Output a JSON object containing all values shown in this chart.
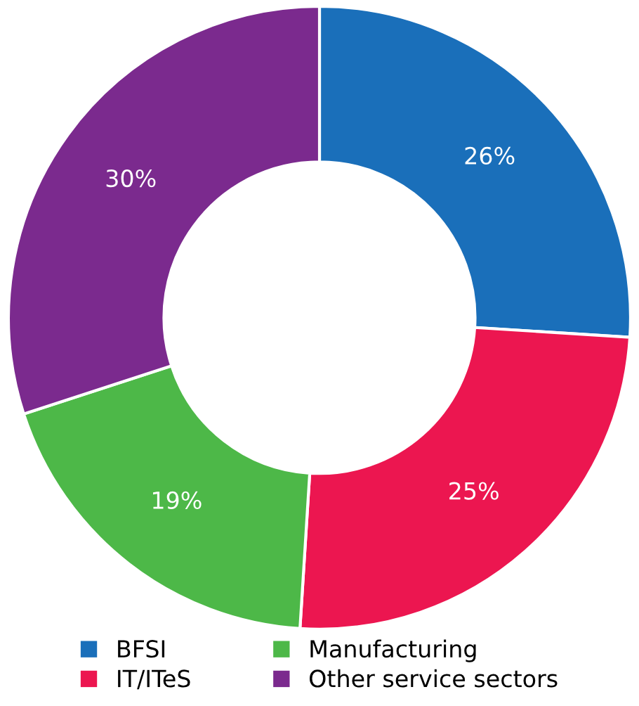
{
  "chart_data": {
    "type": "donut",
    "categories": [
      "BFSI",
      "IT/ITeS",
      "Manufacturing",
      "Other service sectors"
    ],
    "values": [
      26,
      25,
      19,
      30
    ],
    "colors": [
      "#1a6fba",
      "#ec1650",
      "#4db848",
      "#7b2a8e"
    ],
    "value_labels": [
      "26%",
      "25%",
      "19%",
      "30%"
    ],
    "legend": "bottom"
  }
}
